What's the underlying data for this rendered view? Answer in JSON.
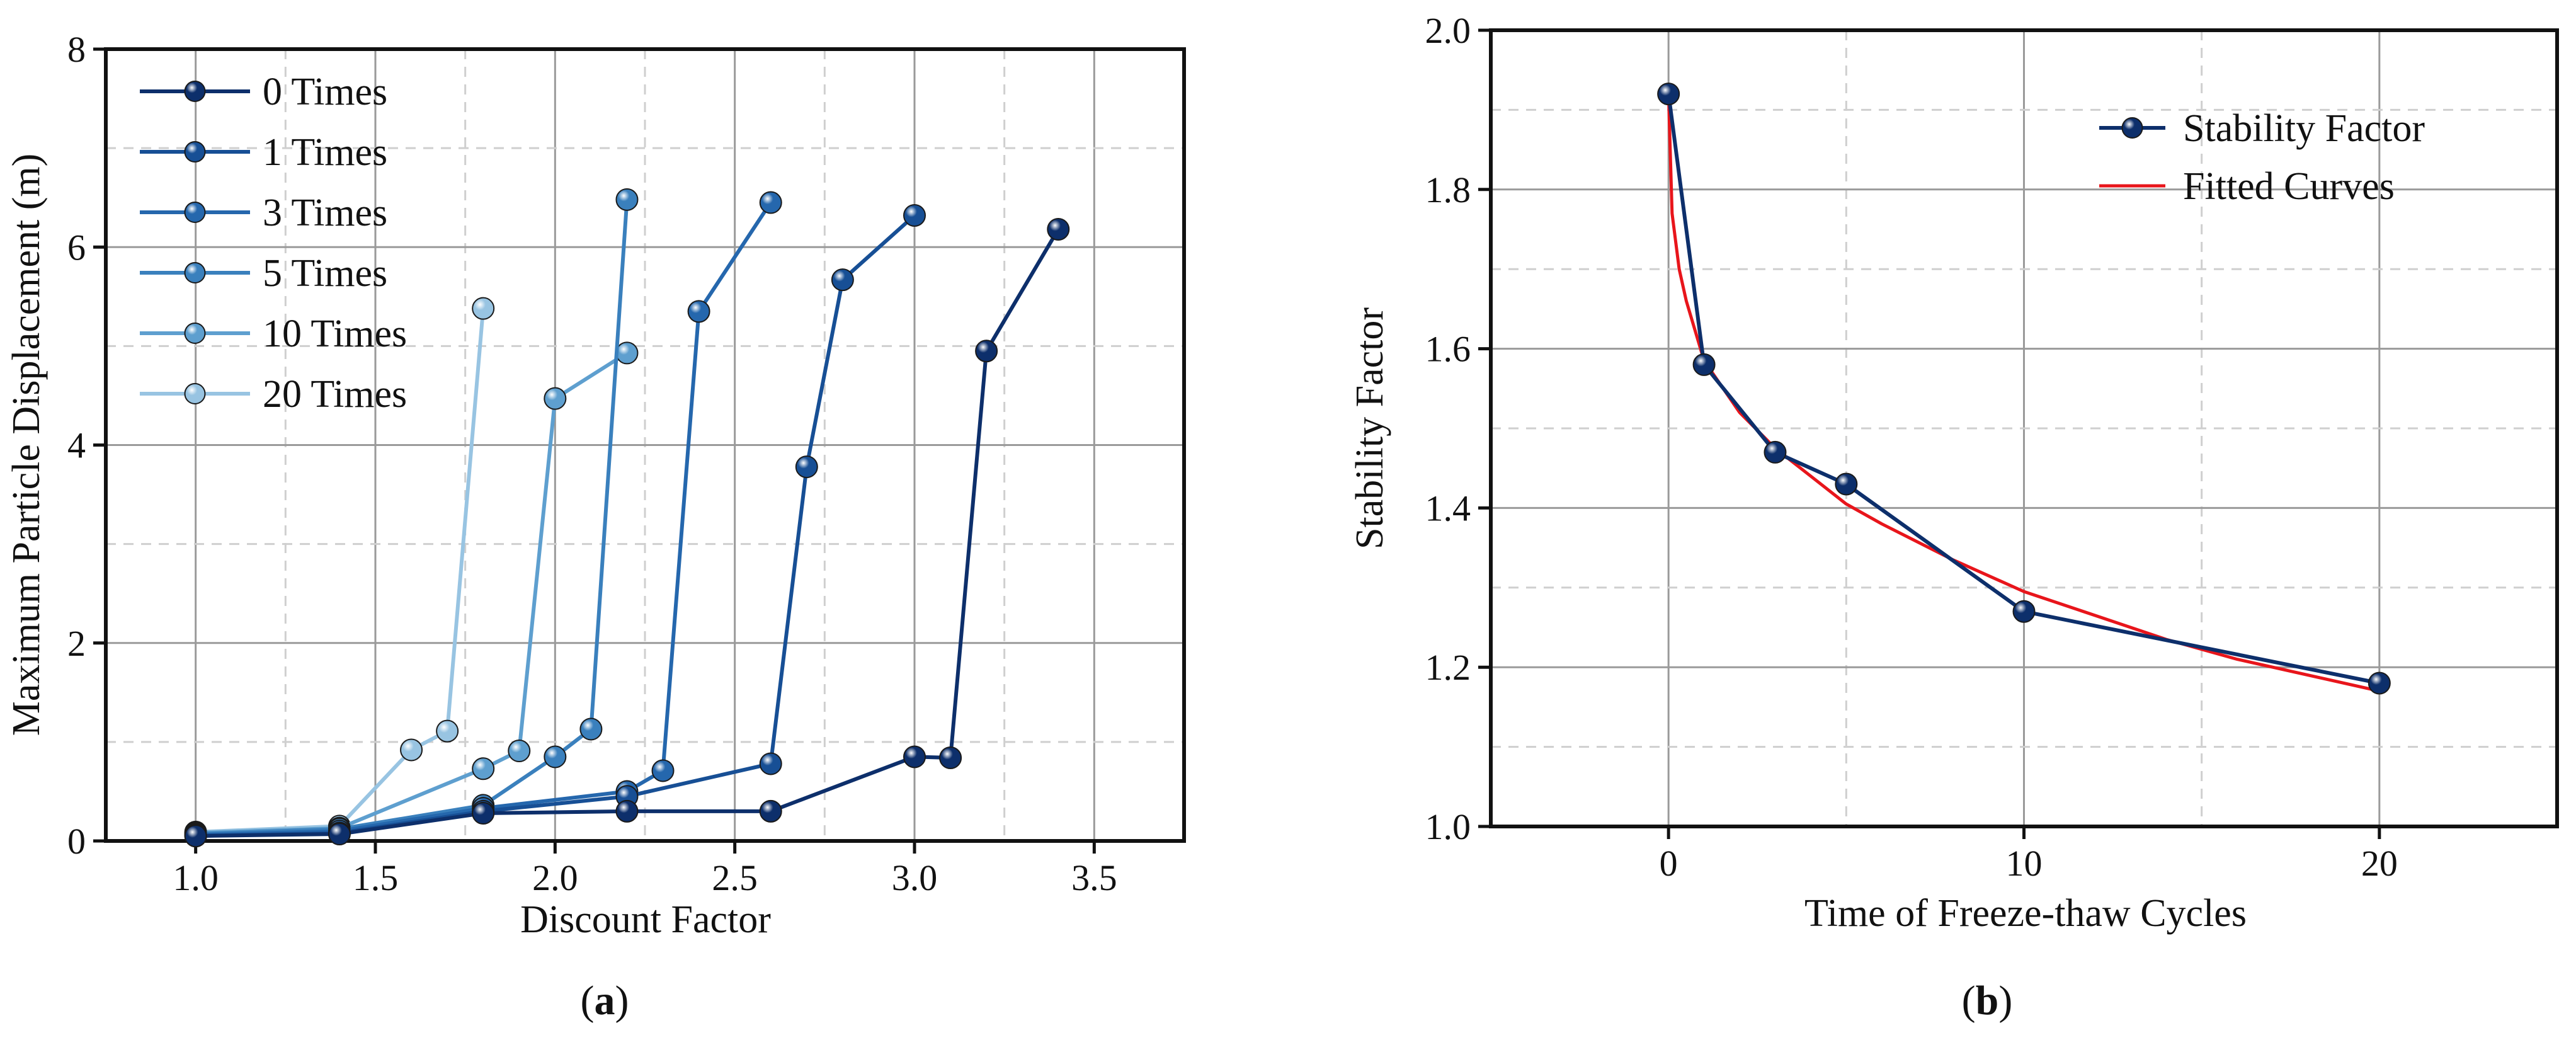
{
  "chart_data": [
    {
      "type": "line",
      "panel_label": "a",
      "xlabel": "Discount Factor",
      "ylabel": "Maximum Particle Displacement (m)",
      "xlim": [
        0.75,
        3.75
      ],
      "ylim": [
        0,
        8
      ],
      "xticks": [
        1.0,
        1.5,
        2.0,
        2.5,
        3.0,
        3.5
      ],
      "xtick_labels": [
        "1.0",
        "1.5",
        "2.0",
        "2.5",
        "3.0",
        "3.5"
      ],
      "yticks": [
        0,
        2,
        4,
        6,
        8
      ],
      "ytick_labels": [
        "0",
        "2",
        "4",
        "6",
        "8"
      ],
      "grid": true,
      "legend_position": "top-left",
      "series": [
        {
          "name": "0 Times",
          "color": "#0d2f6b",
          "x": [
            1.0,
            1.4,
            1.8,
            2.2,
            2.6,
            3.0,
            3.1,
            3.2,
            3.4
          ],
          "y": [
            0.05,
            0.07,
            0.28,
            0.3,
            0.3,
            0.85,
            0.84,
            4.95,
            6.18
          ]
        },
        {
          "name": "1 Times",
          "color": "#174f95",
          "x": [
            1.0,
            1.4,
            1.8,
            2.2,
            2.6,
            2.7,
            2.8,
            3.0
          ],
          "y": [
            0.05,
            0.08,
            0.3,
            0.45,
            0.78,
            3.78,
            5.67,
            6.32
          ]
        },
        {
          "name": "3 Times",
          "color": "#2567ad",
          "x": [
            1.0,
            1.4,
            1.8,
            2.2,
            2.3,
            2.4,
            2.6
          ],
          "y": [
            0.06,
            0.1,
            0.33,
            0.5,
            0.71,
            5.35,
            6.45
          ]
        },
        {
          "name": "5 Times",
          "color": "#3a80bd",
          "x": [
            1.0,
            1.4,
            1.8,
            2.0,
            2.1,
            2.2
          ],
          "y": [
            0.07,
            0.12,
            0.36,
            0.85,
            1.13,
            6.48
          ]
        },
        {
          "name": "10 Times",
          "color": "#5e9fcf",
          "x": [
            1.0,
            1.4,
            1.8,
            1.9,
            2.0,
            2.2
          ],
          "y": [
            0.08,
            0.13,
            0.73,
            0.91,
            4.47,
            4.93
          ]
        },
        {
          "name": "20 Times",
          "color": "#98c4e2",
          "x": [
            1.0,
            1.4,
            1.6,
            1.7,
            1.8
          ],
          "y": [
            0.09,
            0.15,
            0.92,
            1.11,
            5.38
          ]
        }
      ]
    },
    {
      "type": "line",
      "panel_label": "b",
      "xlabel": "Time of Freeze-thaw Cycles",
      "ylabel": "Stability Factor",
      "xlim": [
        -5,
        25
      ],
      "ylim": [
        1.0,
        2.0
      ],
      "xticks": [
        0,
        10,
        20
      ],
      "xtick_labels": [
        "0",
        "10",
        "20"
      ],
      "yticks": [
        1.0,
        1.2,
        1.4,
        1.6,
        1.8,
        2.0
      ],
      "ytick_labels": [
        "1.0",
        "1.2",
        "1.4",
        "1.6",
        "1.8",
        "2.0"
      ],
      "grid": true,
      "legend_position": "top-right",
      "series": [
        {
          "name": "Stability Factor",
          "color": "#0d2f6b",
          "x": [
            0,
            1,
            3,
            5,
            10,
            20
          ],
          "y": [
            1.92,
            1.58,
            1.47,
            1.43,
            1.27,
            1.18
          ]
        },
        {
          "name": "Fitted Curves",
          "color": "#e8151b",
          "x": [
            0,
            0.1,
            0.3,
            0.5,
            1,
            2,
            3,
            4,
            5,
            6,
            8,
            10,
            12,
            14,
            16,
            18,
            20
          ],
          "y": [
            1.92,
            1.77,
            1.7,
            1.66,
            1.585,
            1.52,
            1.475,
            1.44,
            1.405,
            1.38,
            1.335,
            1.295,
            1.265,
            1.235,
            1.21,
            1.19,
            1.17
          ]
        }
      ]
    }
  ]
}
